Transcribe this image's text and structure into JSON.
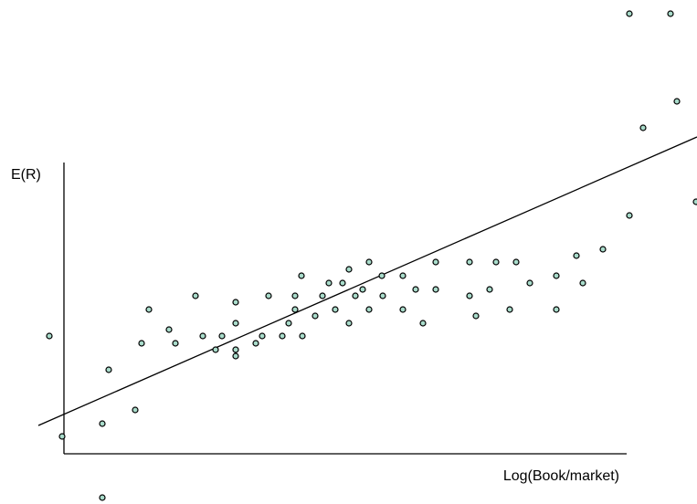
{
  "chart_data": {
    "type": "scatter",
    "y_label": "E(R)",
    "x_label": "Log(Book/market)",
    "color": "#a9dccb",
    "xlim": [
      -70,
      693
    ],
    "ylim": [
      -55,
      497
    ],
    "x": [
      -16,
      -2,
      42,
      49,
      42,
      78,
      85,
      93,
      115,
      122,
      144,
      152,
      166,
      173,
      188,
      188,
      188,
      188,
      210,
      217,
      224,
      239,
      246,
      253,
      253,
      260,
      261,
      275,
      283,
      290,
      297,
      305,
      312,
      312,
      319,
      327,
      334,
      334,
      348,
      349,
      371,
      371,
      385,
      393,
      407,
      407,
      444,
      444,
      451,
      466,
      473,
      488,
      495,
      510,
      539,
      539,
      561,
      568,
      590,
      619,
      619,
      634,
      664,
      671,
      692
    ],
    "y": [
      129,
      19,
      33,
      92,
      -48,
      48,
      121,
      158,
      136,
      121,
      173,
      129,
      114,
      129,
      166,
      143,
      114,
      107,
      121,
      129,
      173,
      129,
      143,
      158,
      173,
      195,
      129,
      151,
      173,
      187,
      158,
      187,
      202,
      143,
      173,
      180,
      210,
      158,
      195,
      173,
      195,
      158,
      180,
      143,
      210,
      180,
      210,
      173,
      151,
      180,
      210,
      158,
      210,
      187,
      195,
      158,
      217,
      187,
      224,
      261,
      482,
      357,
      482,
      386,
      276
    ],
    "trend_line": {
      "x": [
        -28,
        693
      ],
      "y": [
        31,
        347
      ]
    }
  }
}
